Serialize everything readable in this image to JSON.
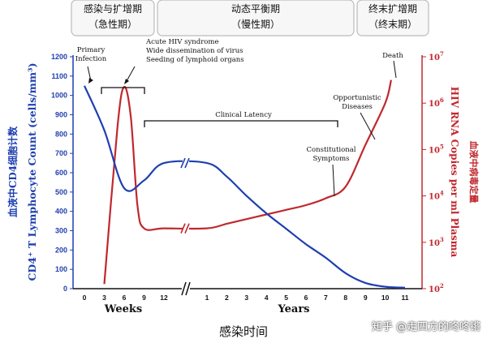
{
  "chart_data": {
    "type": "line",
    "phases": [
      {
        "line1": "感染与扩增期",
        "line2": "（急性期）"
      },
      {
        "line1": "动态平衡期",
        "line2": "（慢性期）"
      },
      {
        "line1": "终末扩增期",
        "line2": "（终末期）"
      }
    ],
    "ylabel_left_cn": "血液中CD4细胞计数",
    "ylabel_left_en": "CD4⁺ T Lymphocyte Count (cells/mm³)",
    "ylabel_right_cn": "血液中病毒定量",
    "ylabel_right_en": "HIV RNA Copies per ml Plasma",
    "xlabel_weeks": "Weeks",
    "xlabel_years": "Years",
    "xlabel_cn": "感染时间",
    "y_left": {
      "min": 0,
      "max": 1200,
      "ticks": [
        "0",
        "100",
        "200",
        "300",
        "400",
        "500",
        "600",
        "700",
        "800",
        "900",
        "1000",
        "1100",
        "1200"
      ]
    },
    "y_right": {
      "scale": "log",
      "min": 2,
      "max": 7,
      "ticks": [
        {
          "base": "10",
          "exp": "2"
        },
        {
          "base": "10",
          "exp": "3"
        },
        {
          "base": "10",
          "exp": "4"
        },
        {
          "base": "10",
          "exp": "5"
        },
        {
          "base": "10",
          "exp": "6"
        },
        {
          "base": "10",
          "exp": "7"
        }
      ]
    },
    "x_ticks": [
      "0",
      "3",
      "6",
      "9",
      "12",
      "1",
      "2",
      "3",
      "4",
      "5",
      "6",
      "7",
      "8",
      "9",
      "10",
      "11"
    ],
    "series": [
      {
        "color": "#1f3fb0",
        "points": [
          [
            "0 wk",
            1050
          ],
          [
            "3 wk",
            820
          ],
          [
            "6 wk",
            520
          ],
          [
            "9 wk",
            560
          ],
          [
            "12 wk",
            650
          ],
          [
            "1 yr",
            650
          ],
          [
            "2 yr",
            580
          ],
          [
            "3 yr",
            480
          ],
          [
            "4 yr",
            390
          ],
          [
            "5 yr",
            310
          ],
          [
            "6 yr",
            230
          ],
          [
            "7 yr",
            160
          ],
          [
            "8 yr",
            80
          ],
          [
            "9 yr",
            30
          ],
          [
            "10 yr",
            10
          ],
          [
            "11 yr",
            5
          ]
        ]
      },
      {
        "color": "#c0282d",
        "points": [
          [
            "3 wk",
            2.1
          ],
          [
            "5 wk",
            5.5
          ],
          [
            "6 wk",
            6.35
          ],
          [
            "7 wk",
            5.7
          ],
          [
            "8 wk",
            3.8
          ],
          [
            "9 wk",
            3.3
          ],
          [
            "12 wk",
            3.3
          ],
          [
            "1 yr",
            3.3
          ],
          [
            "2 yr",
            3.4
          ],
          [
            "3 yr",
            3.5
          ],
          [
            "4 yr",
            3.6
          ],
          [
            "5 yr",
            3.7
          ],
          [
            "6 yr",
            3.8
          ],
          [
            "7 yr",
            3.95
          ],
          [
            "8 yr",
            4.2
          ],
          [
            "9 yr",
            5.1
          ],
          [
            "10 yr",
            6.0
          ],
          [
            "10.3 yr",
            6.5
          ]
        ]
      }
    ],
    "annotations": {
      "primary_infection": [
        "Primary",
        "Infection"
      ],
      "acute": [
        "Acute HIV syndrome",
        "Wide dissemination of virus",
        "Seeding of lymphoid organs"
      ],
      "latency": "Clinical Latency",
      "constitutional": [
        "Constitutional",
        "Symptoms"
      ],
      "opportunistic": [
        "Opportunistic",
        "Diseases"
      ],
      "death": "Death"
    }
  },
  "watermark": "知乎 @走四方的咚咚锵"
}
